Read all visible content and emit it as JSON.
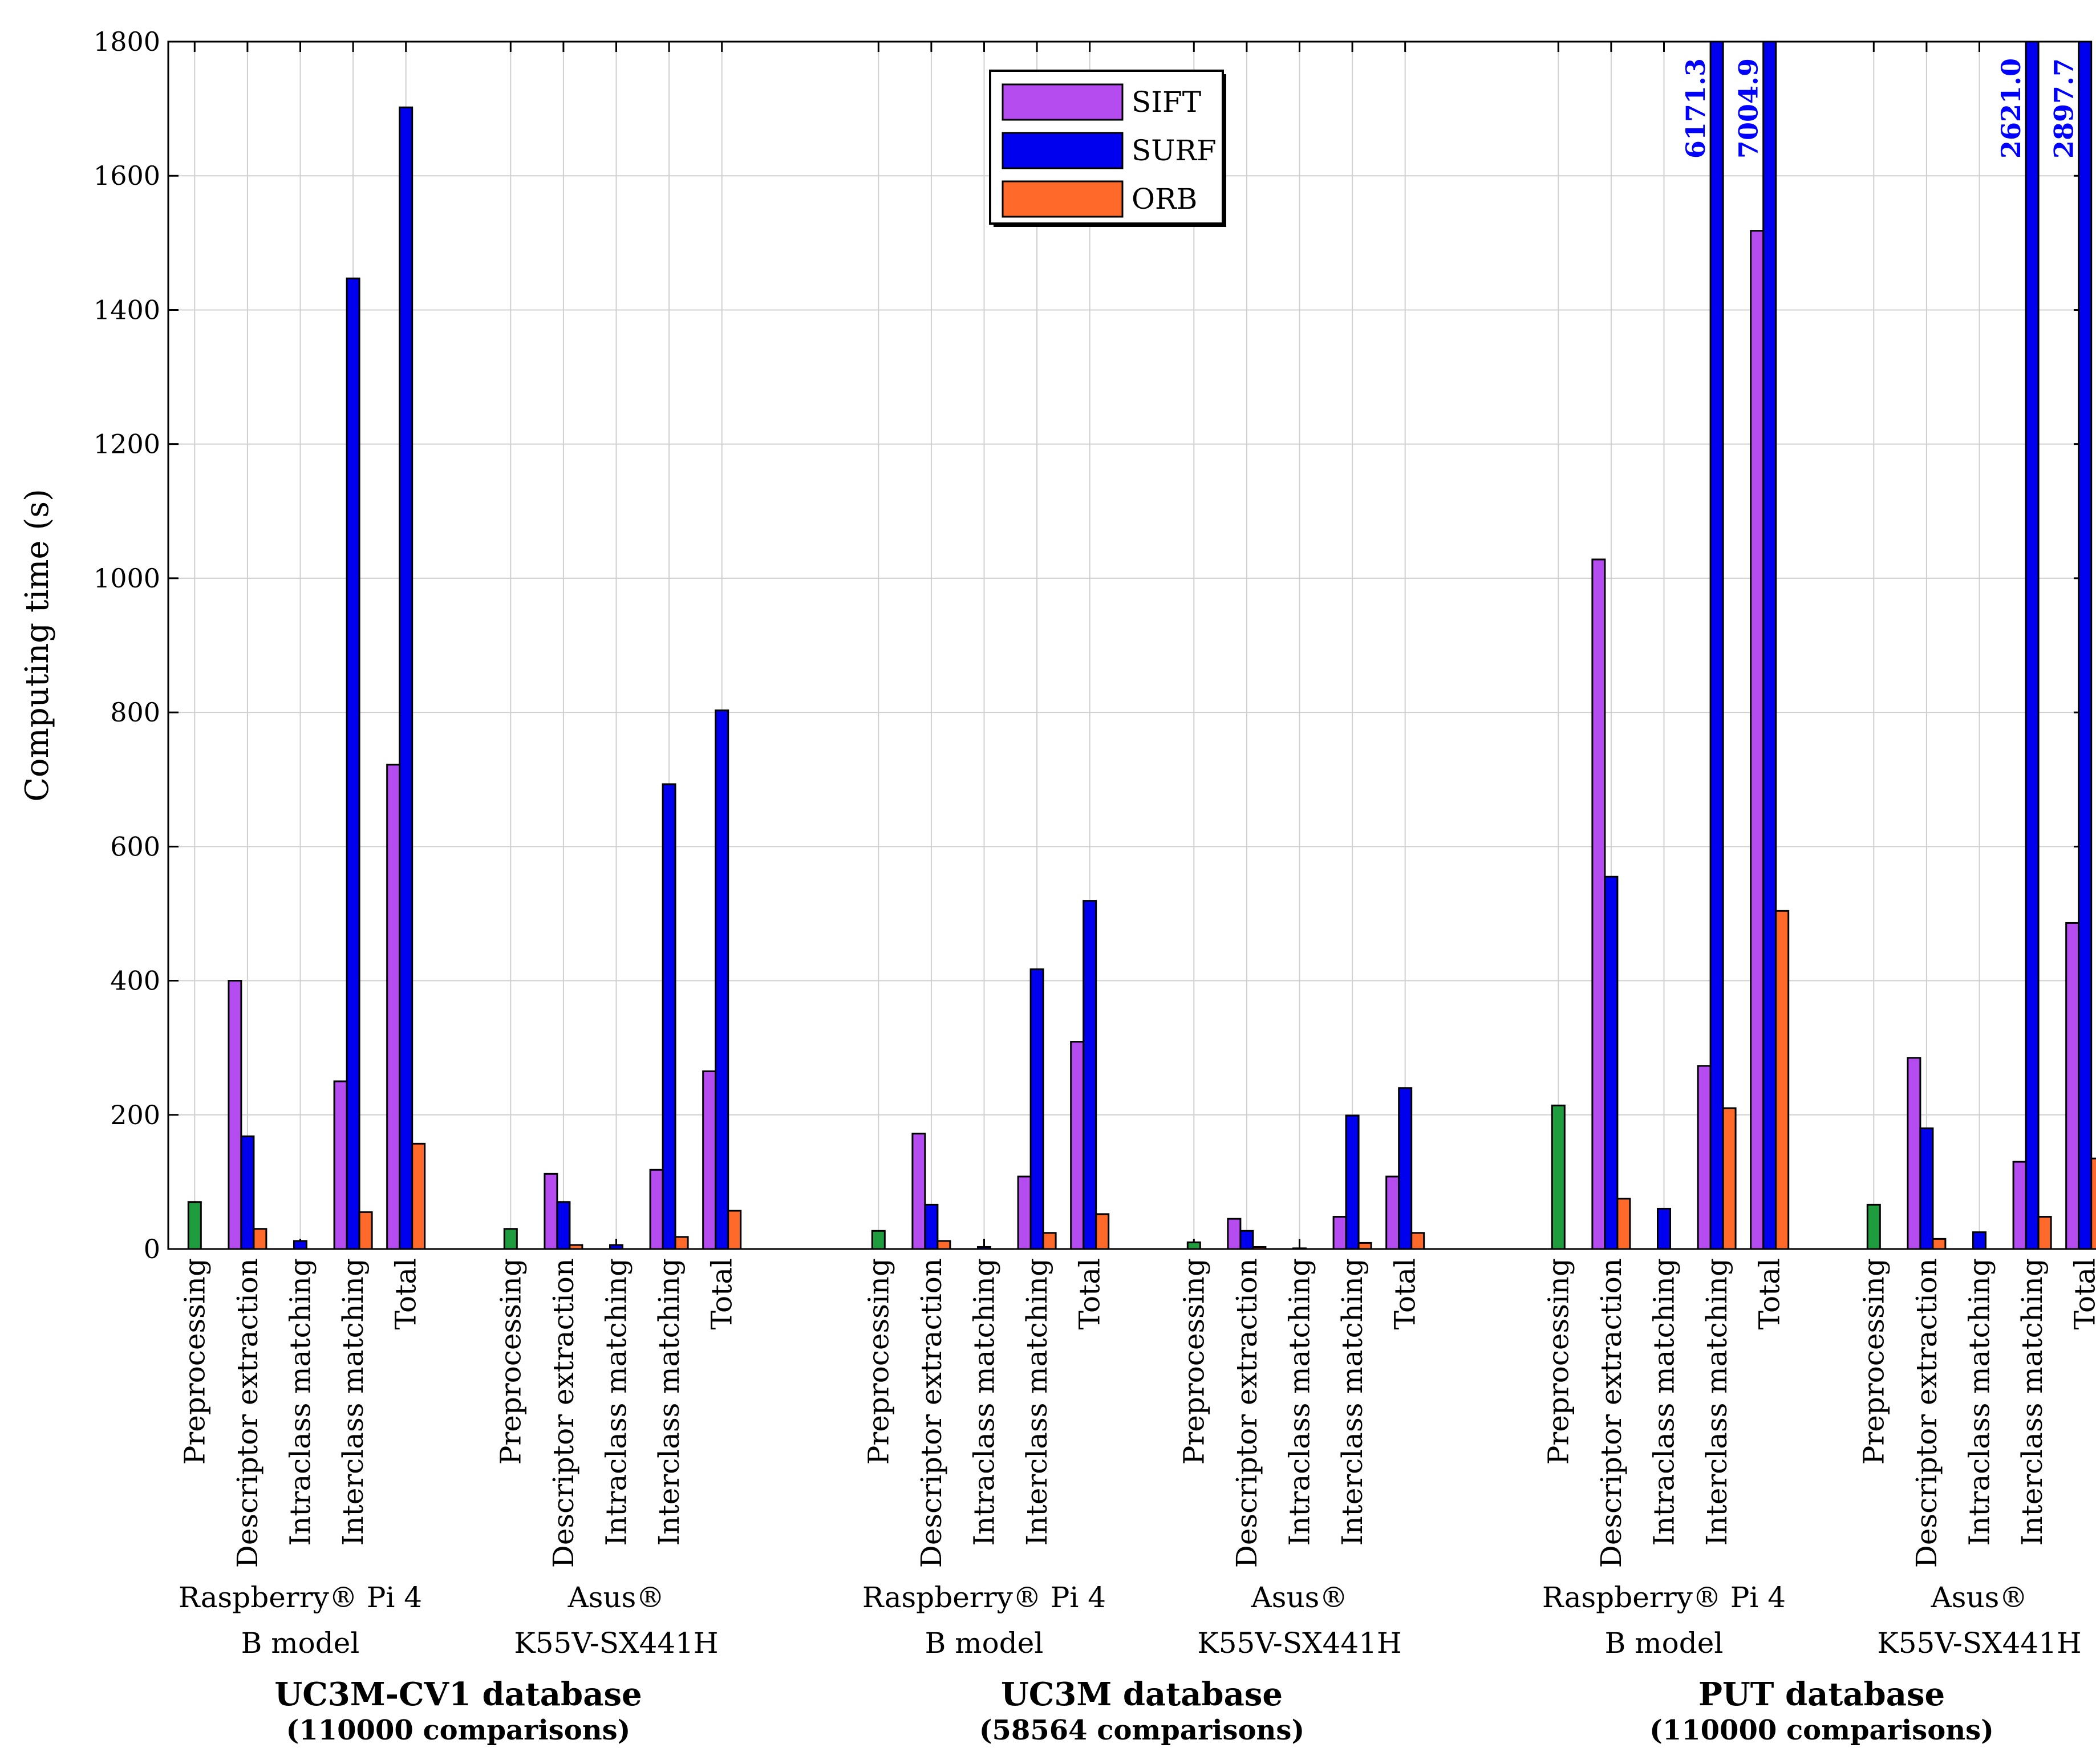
{
  "chart_data": {
    "type": "bar",
    "ylabel": "Computing time (s)",
    "ylim": [
      0,
      1800
    ],
    "yticks": [
      0,
      200,
      400,
      600,
      800,
      1000,
      1200,
      1400,
      1600,
      1800
    ],
    "ytick_labels": [
      "0",
      "200",
      "400",
      "600",
      "800",
      "1000",
      "1200",
      "1400",
      "1600",
      "1800"
    ],
    "grid": true,
    "legend_position": "top-center",
    "colors": {
      "SIFT": "#b44cf0",
      "SURF": "#0000ee",
      "ORB": "#ff6a2b",
      "Preprocessing": "#1e9c3e",
      "overflow_label": "#0000ff"
    },
    "legend": [
      {
        "name": "SIFT",
        "color": "#b44cf0"
      },
      {
        "name": "SURF",
        "color": "#0000ee"
      },
      {
        "name": "ORB",
        "color": "#ff6a2b"
      }
    ],
    "category_labels": [
      "Preprocessing",
      "Descriptor extraction",
      "Intraclass matching",
      "Interclass matching",
      "Total"
    ],
    "databases": [
      {
        "title": "UC3M-CV1 database",
        "subtitle": "(110000 comparisons)",
        "devices": [
          {
            "line1": "Raspberry® Pi 4",
            "line2": "B model",
            "preprocessing": 70,
            "descriptor_extraction": {
              "SIFT": 400,
              "SURF": 168,
              "ORB": 30
            },
            "intraclass_matching": {
              "SIFT": 0,
              "SURF": 12,
              "ORB": 0
            },
            "interclass_matching": {
              "SIFT": 250,
              "SURF": 1447,
              "ORB": 55
            },
            "total": {
              "SIFT": 722,
              "SURF": 1702,
              "ORB": 157
            }
          },
          {
            "line1": "Asus®",
            "line2": "K55V-SX441H",
            "preprocessing": 30,
            "descriptor_extraction": {
              "SIFT": 112,
              "SURF": 70,
              "ORB": 6
            },
            "intraclass_matching": {
              "SIFT": 0,
              "SURF": 6,
              "ORB": 0
            },
            "interclass_matching": {
              "SIFT": 118,
              "SURF": 693,
              "ORB": 18
            },
            "total": {
              "SIFT": 265,
              "SURF": 803,
              "ORB": 57
            }
          }
        ]
      },
      {
        "title": "UC3M database",
        "subtitle": "(58564 comparisons)",
        "devices": [
          {
            "line1": "Raspberry® Pi 4",
            "line2": "B model",
            "preprocessing": 27,
            "descriptor_extraction": {
              "SIFT": 172,
              "SURF": 66,
              "ORB": 12
            },
            "intraclass_matching": {
              "SIFT": 0,
              "SURF": 3,
              "ORB": 0
            },
            "interclass_matching": {
              "SIFT": 108,
              "SURF": 417,
              "ORB": 24
            },
            "total": {
              "SIFT": 309,
              "SURF": 519,
              "ORB": 52
            }
          },
          {
            "line1": "Asus®",
            "line2": "K55V-SX441H",
            "preprocessing": 10,
            "descriptor_extraction": {
              "SIFT": 45,
              "SURF": 27,
              "ORB": 3
            },
            "intraclass_matching": {
              "SIFT": 0,
              "SURF": 1,
              "ORB": 0
            },
            "interclass_matching": {
              "SIFT": 48,
              "SURF": 199,
              "ORB": 9
            },
            "total": {
              "SIFT": 108,
              "SURF": 240,
              "ORB": 24
            }
          }
        ]
      },
      {
        "title": "PUT database",
        "subtitle": "(110000 comparisons)",
        "devices": [
          {
            "line1": "Raspberry® Pi 4",
            "line2": "B model",
            "preprocessing": 214,
            "descriptor_extraction": {
              "SIFT": 1028,
              "SURF": 555,
              "ORB": 75
            },
            "intraclass_matching": {
              "SIFT": 0,
              "SURF": 60,
              "ORB": 0
            },
            "interclass_matching": {
              "SIFT": 273,
              "SURF": 6171.3,
              "ORB": 210
            },
            "total": {
              "SIFT": 1518,
              "SURF": 7004.9,
              "ORB": 504
            }
          },
          {
            "line1": "Asus®",
            "line2": "K55V-SX441H",
            "preprocessing": 66,
            "descriptor_extraction": {
              "SIFT": 285,
              "SURF": 180,
              "ORB": 15
            },
            "intraclass_matching": {
              "SIFT": 0,
              "SURF": 25,
              "ORB": 0
            },
            "interclass_matching": {
              "SIFT": 130,
              "SURF": 2621.0,
              "ORB": 48
            },
            "total": {
              "SIFT": 486,
              "SURF": 2897.7,
              "ORB": 135
            }
          }
        ]
      }
    ],
    "overflow_labels": [
      "6171.3",
      "7004.9",
      "2621.0",
      "2897.7"
    ]
  }
}
